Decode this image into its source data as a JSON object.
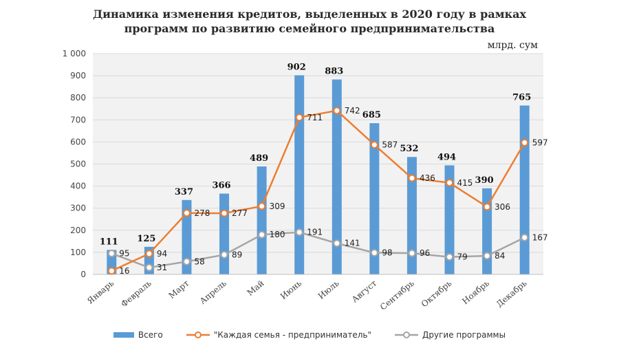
{
  "title_line1": "Динамика изменения кредитов, выделенных в 2020 году в рамках",
  "title_line2": "программ по развитию семейного предпринимательства",
  "unit": "млрд. сум",
  "colors": {
    "total": "#5b9bd5",
    "family": "#ed7d31",
    "other": "#a5a5a5",
    "plot_bg": "#f2f2f2",
    "grid": "#d9d9d9"
  },
  "chart_data": {
    "type": "bar+line",
    "title": "Динамика изменения кредитов, выделенных в 2020 году в рамках программ по развитию семейного предпринимательства",
    "ylabel": "млрд. сум",
    "ylim": [
      0,
      1000
    ],
    "yticks": [
      0,
      100,
      200,
      300,
      400,
      500,
      600,
      700,
      800,
      900,
      1000
    ],
    "ytick_labels": [
      "0",
      "100",
      "200",
      "300",
      "400",
      "500",
      "600",
      "700",
      "800",
      "900",
      "1 000"
    ],
    "categories": [
      "Январь",
      "Февраль",
      "Март",
      "Апрель",
      "Май",
      "Июнь",
      "Июль",
      "Август",
      "Сентябрь",
      "Октябрь",
      "Ноябрь",
      "Декабрь"
    ],
    "series": [
      {
        "name": "Всего",
        "type": "bar",
        "values": [
          111,
          125,
          337,
          366,
          489,
          902,
          883,
          685,
          532,
          494,
          390,
          765
        ]
      },
      {
        "name": "\"Каждая семья - предприниматель\"",
        "type": "line",
        "values": [
          16,
          94,
          278,
          277,
          309,
          711,
          742,
          587,
          436,
          415,
          306,
          597
        ]
      },
      {
        "name": "Другие программы",
        "type": "line",
        "values": [
          95,
          31,
          58,
          89,
          180,
          191,
          141,
          98,
          96,
          79,
          84,
          167
        ]
      }
    ],
    "legend_position": "bottom"
  }
}
